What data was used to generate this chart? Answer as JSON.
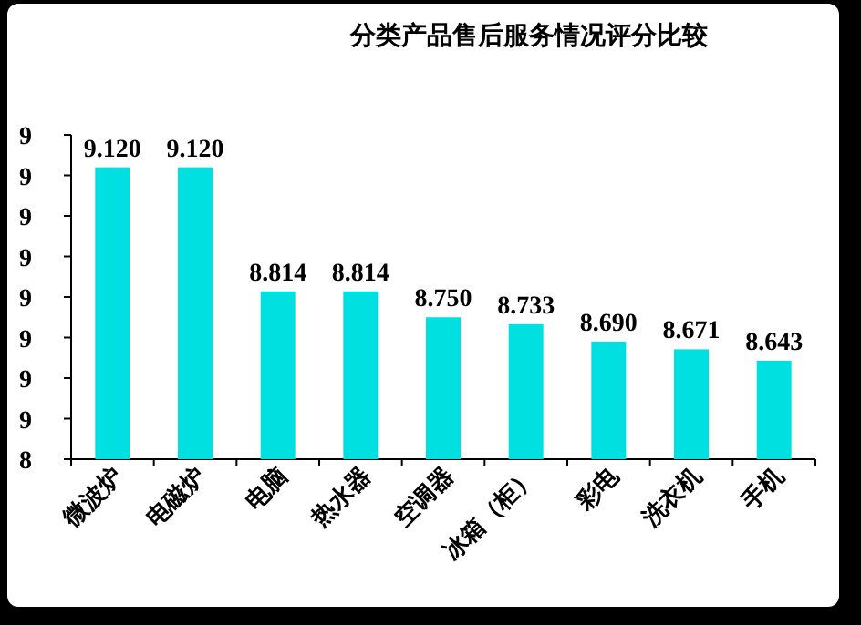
{
  "chart_data": {
    "type": "bar",
    "title": "分类产品售后服务情况评分比较",
    "categories": [
      "微波炉",
      "电磁炉",
      "电脑",
      "热水器",
      "空调器",
      "冰箱（柜）",
      "彩电",
      "洗衣机",
      "手机"
    ],
    "values": [
      9.12,
      9.12,
      8.814,
      8.814,
      8.75,
      8.733,
      8.69,
      8.671,
      8.643
    ],
    "value_labels": [
      "9.120",
      "9.120",
      "8.814",
      "8.814",
      "8.750",
      "8.733",
      "8.690",
      "8.671",
      "8.643"
    ],
    "color": "#00e0e0",
    "ylim": [
      8.4,
      9.2
    ],
    "yticks": [
      {
        "value": 8.4,
        "label": "8"
      },
      {
        "value": 8.5,
        "label": "9"
      },
      {
        "value": 8.6,
        "label": "9"
      },
      {
        "value": 8.7,
        "label": "9"
      },
      {
        "value": 8.8,
        "label": "9"
      },
      {
        "value": 8.9,
        "label": "9"
      },
      {
        "value": 9.0,
        "label": "9"
      },
      {
        "value": 9.1,
        "label": "9"
      },
      {
        "value": 9.2,
        "label": "9"
      }
    ],
    "marker": "none"
  }
}
